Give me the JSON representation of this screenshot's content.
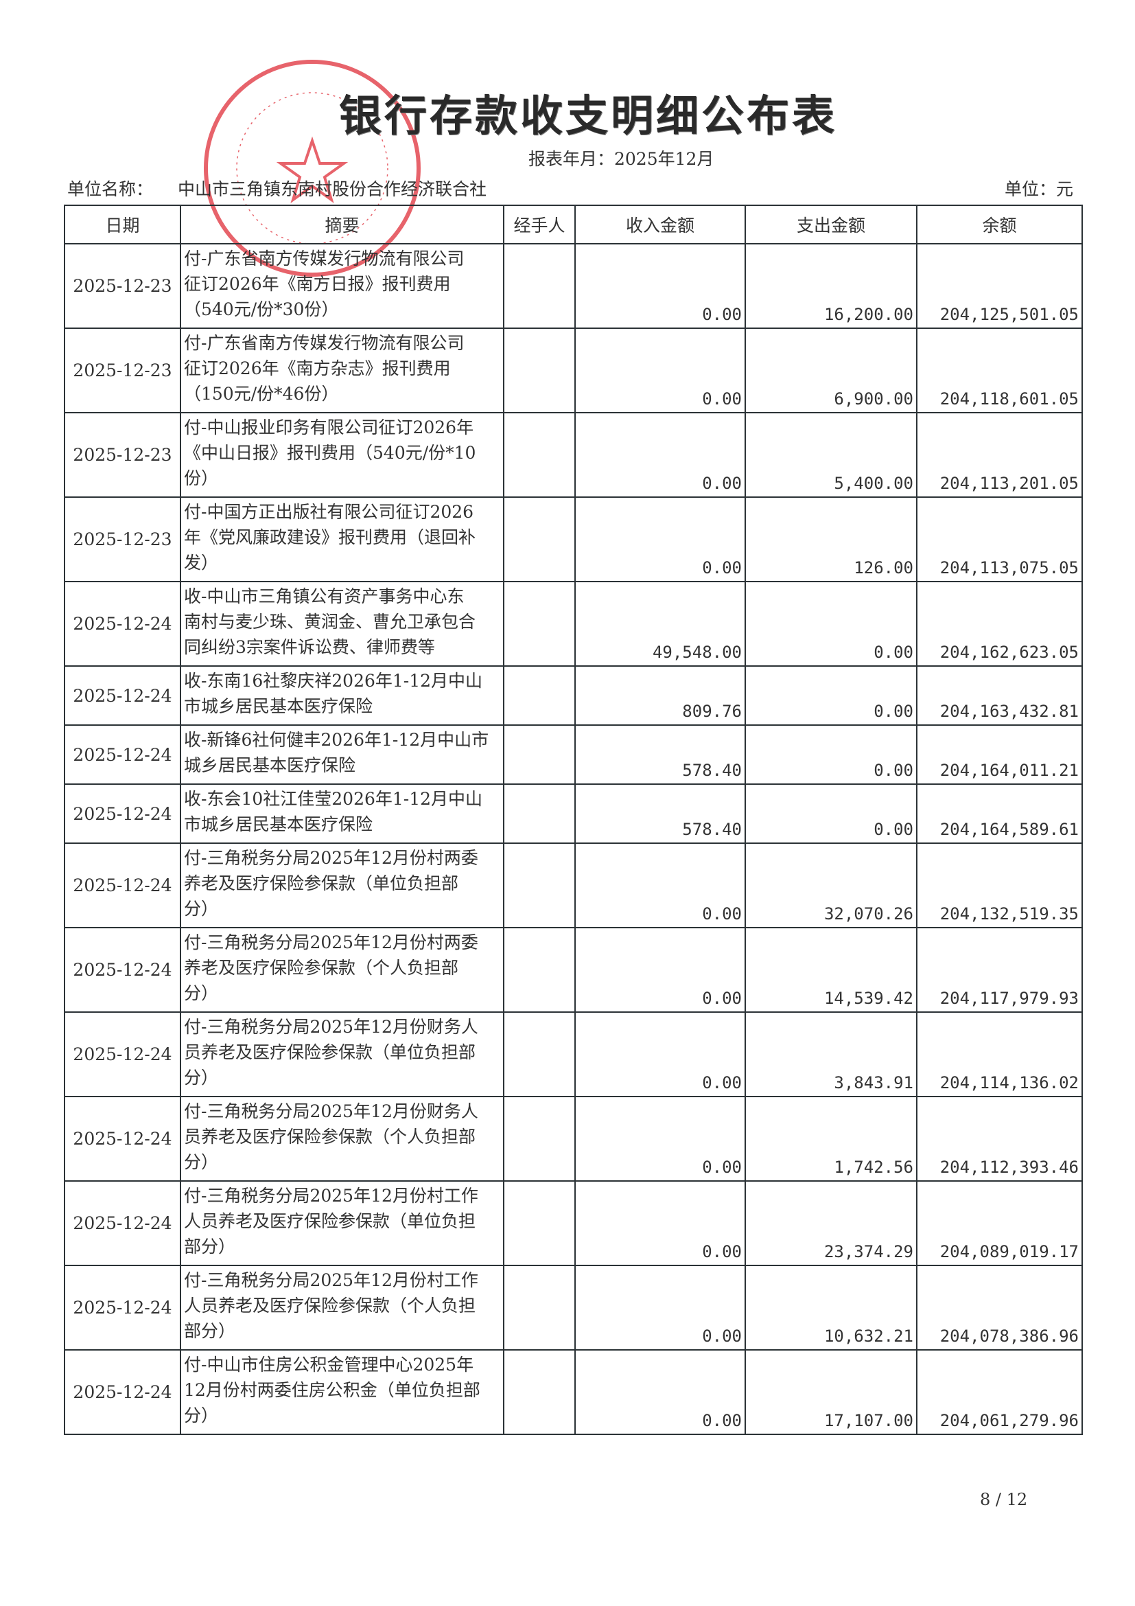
{
  "title": "银行存款收支明细公布表",
  "period": "报表年月：2025年12月",
  "unit_label": "单位名称：",
  "unit_name": "中山市三角镇东南村股份合作经济联合社",
  "currency_unit": "单位：元",
  "stamp": {
    "text": "中山市三角镇东南村股份合作经济联合社",
    "color": "#e0303a"
  },
  "columns": [
    "日期",
    "摘要",
    "经手人",
    "收入金额",
    "支出金额",
    "余额"
  ],
  "rows": [
    {
      "date": "2025-12-23",
      "summary_lines": [
        "付-广东省南方传媒发行物流有限公司",
        "征订2026年《南方日报》报刊费用",
        "（540元/份*30份）"
      ],
      "handler": "",
      "income": "0.00",
      "expense": "16,200.00",
      "balance": "204,125,501.05"
    },
    {
      "date": "2025-12-23",
      "summary_lines": [
        "付-广东省南方传媒发行物流有限公司",
        "征订2026年《南方杂志》报刊费用",
        "（150元/份*46份）"
      ],
      "handler": "",
      "income": "0.00",
      "expense": "6,900.00",
      "balance": "204,118,601.05"
    },
    {
      "date": "2025-12-23",
      "summary_lines": [
        "付-中山报业印务有限公司征订2026年",
        "《中山日报》报刊费用（540元/份*10",
        "份）"
      ],
      "handler": "",
      "income": "0.00",
      "expense": "5,400.00",
      "balance": "204,113,201.05"
    },
    {
      "date": "2025-12-23",
      "summary_lines": [
        "付-中国方正出版社有限公司征订2026",
        "年《党风廉政建设》报刊费用（退回补",
        "发）"
      ],
      "handler": "",
      "income": "0.00",
      "expense": "126.00",
      "balance": "204,113,075.05"
    },
    {
      "date": "2025-12-24",
      "summary_lines": [
        "收-中山市三角镇公有资产事务中心东",
        "南村与麦少珠、黄润金、曹允卫承包合",
        "同纠纷3宗案件诉讼费、律师费等"
      ],
      "handler": "",
      "income": "49,548.00",
      "expense": "0.00",
      "balance": "204,162,623.05"
    },
    {
      "date": "2025-12-24",
      "summary_lines": [
        "收-东南16社黎庆祥2026年1-12月中山",
        "市城乡居民基本医疗保险"
      ],
      "handler": "",
      "income": "809.76",
      "expense": "0.00",
      "balance": "204,163,432.81"
    },
    {
      "date": "2025-12-24",
      "summary_lines": [
        "收-新锋6社何健丰2026年1-12月中山市",
        "城乡居民基本医疗保险"
      ],
      "handler": "",
      "income": "578.40",
      "expense": "0.00",
      "balance": "204,164,011.21"
    },
    {
      "date": "2025-12-24",
      "summary_lines": [
        "收-东会10社江佳莹2026年1-12月中山",
        "市城乡居民基本医疗保险"
      ],
      "handler": "",
      "income": "578.40",
      "expense": "0.00",
      "balance": "204,164,589.61"
    },
    {
      "date": "2025-12-24",
      "summary_lines": [
        "付-三角税务分局2025年12月份村两委",
        "养老及医疗保险参保款（单位负担部",
        "分）"
      ],
      "handler": "",
      "income": "0.00",
      "expense": "32,070.26",
      "balance": "204,132,519.35"
    },
    {
      "date": "2025-12-24",
      "summary_lines": [
        "付-三角税务分局2025年12月份村两委",
        "养老及医疗保险参保款（个人负担部",
        "分）"
      ],
      "handler": "",
      "income": "0.00",
      "expense": "14,539.42",
      "balance": "204,117,979.93"
    },
    {
      "date": "2025-12-24",
      "summary_lines": [
        "付-三角税务分局2025年12月份财务人",
        "员养老及医疗保险参保款（单位负担部",
        "分）"
      ],
      "handler": "",
      "income": "0.00",
      "expense": "3,843.91",
      "balance": "204,114,136.02"
    },
    {
      "date": "2025-12-24",
      "summary_lines": [
        "付-三角税务分局2025年12月份财务人",
        "员养老及医疗保险参保款（个人负担部",
        "分）"
      ],
      "handler": "",
      "income": "0.00",
      "expense": "1,742.56",
      "balance": "204,112,393.46"
    },
    {
      "date": "2025-12-24",
      "summary_lines": [
        "付-三角税务分局2025年12月份村工作",
        "人员养老及医疗保险参保款（单位负担",
        "部分）"
      ],
      "handler": "",
      "income": "0.00",
      "expense": "23,374.29",
      "balance": "204,089,019.17"
    },
    {
      "date": "2025-12-24",
      "summary_lines": [
        "付-三角税务分局2025年12月份村工作",
        "人员养老及医疗保险参保款（个人负担",
        "部分）"
      ],
      "handler": "",
      "income": "0.00",
      "expense": "10,632.21",
      "balance": "204,078,386.96"
    },
    {
      "date": "2025-12-24",
      "summary_lines": [
        "付-中山市住房公积金管理中心2025年",
        "12月份村两委住房公积金（单位负担部",
        "分）"
      ],
      "handler": "",
      "income": "0.00",
      "expense": "17,107.00",
      "balance": "204,061,279.96"
    }
  ],
  "page_number": "8 / 12"
}
